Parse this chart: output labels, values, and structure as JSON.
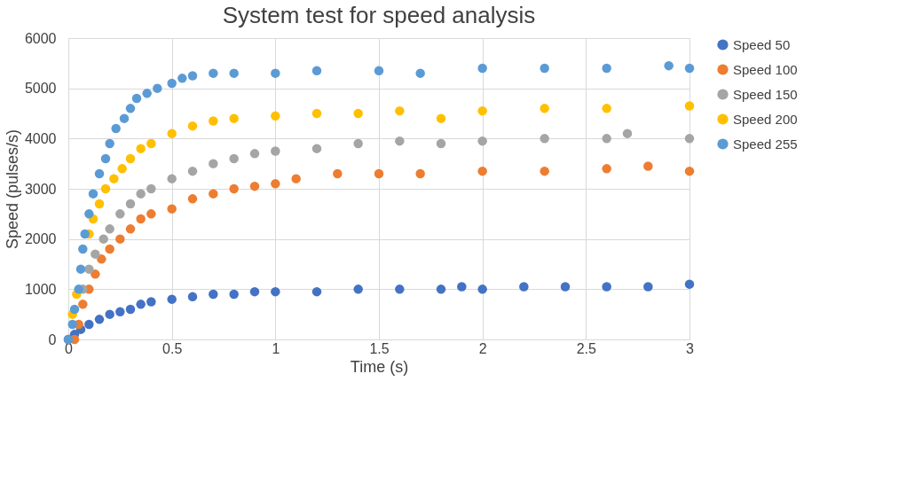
{
  "chart_data": {
    "type": "scatter",
    "title": "System test for speed analysis",
    "xlabel": "Time (s)",
    "ylabel": "Speed (pulses/s)",
    "xlim": [
      0,
      3
    ],
    "ylim": [
      0,
      6000
    ],
    "xticks": [
      0,
      0.5,
      1,
      1.5,
      2,
      2.5,
      3
    ],
    "yticks": [
      0,
      1000,
      2000,
      3000,
      4000,
      5000,
      6000
    ],
    "grid": true,
    "legend": "right",
    "marker": "circle",
    "series": [
      {
        "name": "Speed 50",
        "color": "#4472c4",
        "x": [
          0,
          0.03,
          0.06,
          0.1,
          0.15,
          0.2,
          0.25,
          0.3,
          0.35,
          0.4,
          0.5,
          0.6,
          0.7,
          0.8,
          0.9,
          1.0,
          1.2,
          1.4,
          1.6,
          1.8,
          1.9,
          2.0,
          2.2,
          2.4,
          2.6,
          2.8,
          3.0
        ],
        "values": [
          0,
          100,
          200,
          300,
          400,
          500,
          550,
          600,
          700,
          750,
          800,
          850,
          900,
          900,
          950,
          950,
          950,
          1000,
          1000,
          1000,
          1050,
          1000,
          1050,
          1050,
          1050,
          1050,
          1100
        ]
      },
      {
        "name": "Speed 100",
        "color": "#ed7d31",
        "x": [
          0.03,
          0.05,
          0.07,
          0.1,
          0.13,
          0.16,
          0.2,
          0.25,
          0.3,
          0.35,
          0.4,
          0.5,
          0.6,
          0.7,
          0.8,
          0.9,
          1.0,
          1.1,
          1.3,
          1.5,
          1.7,
          2.0,
          2.3,
          2.6,
          2.8,
          3.0
        ],
        "values": [
          0,
          300,
          700,
          1000,
          1300,
          1600,
          1800,
          2000,
          2200,
          2400,
          2500,
          2600,
          2800,
          2900,
          3000,
          3050,
          3100,
          3200,
          3300,
          3300,
          3300,
          3350,
          3350,
          3400,
          3450,
          3350
        ]
      },
      {
        "name": "Speed 150",
        "color": "#a5a5a5",
        "x": [
          0.07,
          0.1,
          0.13,
          0.17,
          0.2,
          0.25,
          0.3,
          0.35,
          0.4,
          0.5,
          0.6,
          0.7,
          0.8,
          0.9,
          1.0,
          1.2,
          1.4,
          1.6,
          1.8,
          2.0,
          2.3,
          2.6,
          2.7,
          3.0
        ],
        "values": [
          1000,
          1400,
          1700,
          2000,
          2200,
          2500,
          2700,
          2900,
          3000,
          3200,
          3350,
          3500,
          3600,
          3700,
          3750,
          3800,
          3900,
          3950,
          3900,
          3950,
          4000,
          4000,
          4100,
          4000
        ]
      },
      {
        "name": "Speed 200",
        "color": "#ffc000",
        "x": [
          0.02,
          0.04,
          0.1,
          0.12,
          0.15,
          0.18,
          0.22,
          0.26,
          0.3,
          0.35,
          0.4,
          0.5,
          0.6,
          0.7,
          0.8,
          1.0,
          1.2,
          1.4,
          1.6,
          1.8,
          2.0,
          2.3,
          2.6,
          3.0
        ],
        "values": [
          500,
          900,
          2100,
          2400,
          2700,
          3000,
          3200,
          3400,
          3600,
          3800,
          3900,
          4100,
          4250,
          4350,
          4400,
          4450,
          4500,
          4500,
          4550,
          4400,
          4550,
          4600,
          4600,
          4650
        ]
      },
      {
        "name": "Speed 255",
        "color": "#5b9bd5",
        "x": [
          0,
          0.02,
          0.03,
          0.05,
          0.06,
          0.07,
          0.08,
          0.1,
          0.12,
          0.15,
          0.18,
          0.2,
          0.23,
          0.27,
          0.3,
          0.33,
          0.38,
          0.43,
          0.5,
          0.55,
          0.6,
          0.7,
          0.8,
          1.0,
          1.2,
          1.5,
          1.7,
          2.0,
          2.3,
          2.6,
          2.9,
          3.0
        ],
        "values": [
          0,
          300,
          600,
          1000,
          1400,
          1800,
          2100,
          2500,
          2900,
          3300,
          3600,
          3900,
          4200,
          4400,
          4600,
          4800,
          4900,
          5000,
          5100,
          5200,
          5250,
          5300,
          5300,
          5300,
          5350,
          5350,
          5300,
          5400,
          5400,
          5400,
          5450,
          5400
        ]
      }
    ]
  }
}
